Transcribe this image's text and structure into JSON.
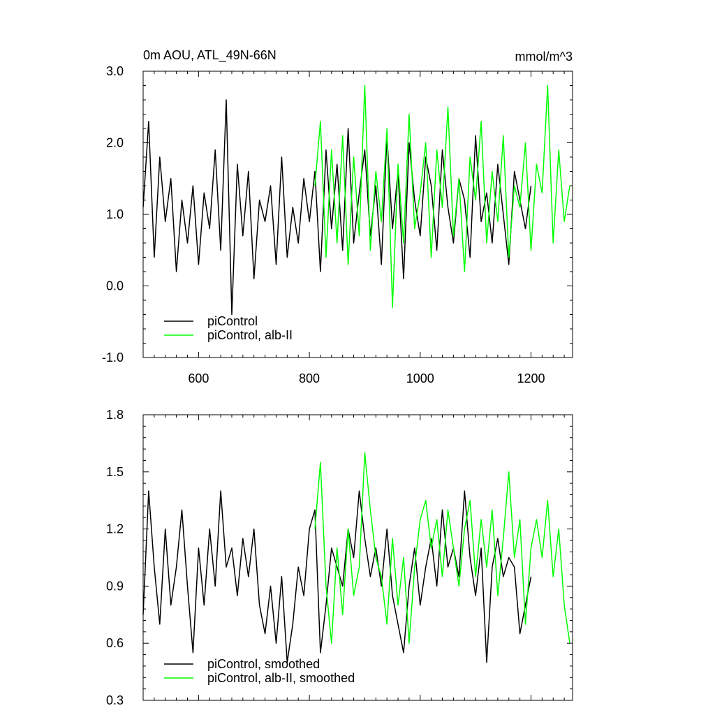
{
  "colors": {
    "control": "#000000",
    "alb": "#00ff00"
  },
  "chart_data": [
    {
      "type": "line",
      "title": "0m AOU, ATL_49N-66N",
      "units": "mmol/m^3",
      "xlim": [
        500,
        1275
      ],
      "ylim": [
        -1.0,
        3.0
      ],
      "xticks": [
        600,
        800,
        1000,
        1200
      ],
      "yticks": [
        -1.0,
        0.0,
        1.0,
        2.0,
        3.0
      ],
      "ytick_labels": [
        "-1.0",
        "0.0",
        "1.0",
        "2.0",
        "3.0"
      ],
      "xtick_labels": [
        "600",
        "800",
        "1000",
        "1200"
      ],
      "legend": {
        "placement": "bottom-left",
        "entries": [
          "piControl",
          "piControl, alb-II"
        ]
      },
      "series": [
        {
          "name": "piControl",
          "color": "#000000",
          "x": [
            500,
            510,
            520,
            530,
            540,
            550,
            560,
            570,
            580,
            590,
            600,
            610,
            620,
            630,
            640,
            650,
            660,
            670,
            680,
            690,
            700,
            710,
            720,
            730,
            740,
            750,
            760,
            770,
            780,
            790,
            800,
            810,
            820,
            830,
            840,
            850,
            860,
            870,
            880,
            890,
            900,
            910,
            920,
            930,
            940,
            950,
            960,
            970,
            980,
            990,
            1000,
            1010,
            1020,
            1030,
            1040,
            1050,
            1060,
            1070,
            1080,
            1090,
            1100,
            1110,
            1120,
            1130,
            1140,
            1150,
            1160,
            1170,
            1180,
            1190,
            1200
          ],
          "y": [
            1.1,
            2.3,
            0.4,
            1.8,
            0.9,
            1.5,
            0.2,
            1.2,
            0.6,
            1.4,
            0.3,
            1.3,
            0.8,
            1.9,
            0.5,
            2.6,
            -0.4,
            1.7,
            0.7,
            1.6,
            0.1,
            1.2,
            0.9,
            1.4,
            0.3,
            1.8,
            0.4,
            1.1,
            0.6,
            1.5,
            0.9,
            1.6,
            0.2,
            1.9,
            0.8,
            1.7,
            0.5,
            2.2,
            0.6,
            1.3,
            1.9,
            0.7,
            1.4,
            0.3,
            2.1,
            0.8,
            1.6,
            0.1,
            2.0,
            1.2,
            0.7,
            1.8,
            1.4,
            0.5,
            1.9,
            1.1,
            0.6,
            1.5,
            1.2,
            0.4,
            2.1,
            0.9,
            1.3,
            0.6,
            1.7,
            1.0,
            0.3,
            1.6,
            1.2,
            0.8,
            1.4
          ]
        },
        {
          "name": "piControl, alb-II",
          "color": "#00ff00",
          "x": [
            810,
            820,
            830,
            840,
            850,
            860,
            870,
            880,
            890,
            900,
            910,
            920,
            930,
            940,
            950,
            960,
            970,
            980,
            990,
            1000,
            1010,
            1020,
            1030,
            1040,
            1050,
            1060,
            1070,
            1080,
            1090,
            1100,
            1110,
            1120,
            1130,
            1140,
            1150,
            1160,
            1170,
            1180,
            1190,
            1200,
            1210,
            1220,
            1230,
            1240,
            1250,
            1260,
            1270
          ],
          "y": [
            1.4,
            2.3,
            0.4,
            1.9,
            0.6,
            2.1,
            0.3,
            1.8,
            0.7,
            2.8,
            0.5,
            1.6,
            0.9,
            2.2,
            -0.3,
            1.7,
            0.6,
            2.4,
            0.8,
            1.3,
            2.0,
            0.4,
            1.9,
            1.1,
            2.5,
            0.7,
            1.5,
            0.2,
            1.8,
            1.2,
            2.3,
            0.6,
            1.6,
            0.9,
            2.1,
            0.4,
            1.4,
            1.1,
            2.0,
            0.5,
            1.7,
            1.3,
            2.8,
            0.6,
            1.9,
            0.9,
            1.4
          ]
        }
      ]
    },
    {
      "type": "line",
      "xlim": [
        500,
        1275
      ],
      "ylim": [
        0.3,
        1.8
      ],
      "yticks": [
        0.3,
        0.6,
        0.9,
        1.2,
        1.5,
        1.8
      ],
      "ytick_labels": [
        "0.3",
        "0.6",
        "0.9",
        "1.2",
        "1.5",
        "1.8"
      ],
      "legend": {
        "placement": "bottom-left",
        "entries": [
          "piControl, smoothed",
          "piControl, alb-II, smoothed"
        ]
      },
      "series": [
        {
          "name": "piControl, smoothed",
          "color": "#000000",
          "x": [
            500,
            510,
            520,
            530,
            540,
            550,
            560,
            570,
            580,
            590,
            600,
            610,
            620,
            630,
            640,
            650,
            660,
            670,
            680,
            690,
            700,
            710,
            720,
            730,
            740,
            750,
            760,
            770,
            780,
            790,
            800,
            810,
            820,
            830,
            840,
            850,
            860,
            870,
            880,
            890,
            900,
            910,
            920,
            930,
            940,
            950,
            960,
            970,
            980,
            990,
            1000,
            1010,
            1020,
            1030,
            1040,
            1050,
            1060,
            1070,
            1080,
            1090,
            1100,
            1110,
            1120,
            1130,
            1140,
            1150,
            1160,
            1170,
            1180,
            1190,
            1200
          ],
          "y": [
            0.75,
            1.4,
            1.0,
            0.7,
            1.2,
            0.8,
            1.0,
            1.3,
            0.9,
            0.55,
            1.1,
            0.8,
            1.2,
            0.9,
            1.4,
            1.0,
            1.1,
            0.85,
            1.15,
            0.95,
            1.2,
            0.8,
            0.65,
            0.9,
            0.6,
            0.95,
            0.5,
            0.7,
            1.0,
            0.85,
            1.2,
            1.3,
            0.55,
            0.8,
            1.1,
            1.0,
            0.9,
            1.2,
            1.05,
            1.4,
            1.15,
            0.95,
            1.1,
            0.9,
            1.2,
            0.85,
            0.7,
            0.55,
            0.9,
            1.1,
            0.8,
            1.0,
            1.15,
            0.9,
            1.3,
            1.0,
            1.1,
            0.95,
            1.4,
            1.05,
            0.85,
            1.1,
            0.5,
            1.0,
            1.15,
            0.95,
            1.05,
            1.0,
            0.65,
            0.8,
            0.95
          ]
        },
        {
          "name": "piControl, alb-II, smoothed",
          "color": "#00ff00",
          "x": [
            810,
            820,
            830,
            840,
            850,
            860,
            870,
            880,
            890,
            900,
            910,
            920,
            930,
            940,
            950,
            960,
            970,
            980,
            990,
            1000,
            1010,
            1020,
            1030,
            1040,
            1050,
            1060,
            1070,
            1080,
            1090,
            1100,
            1110,
            1120,
            1130,
            1140,
            1150,
            1160,
            1170,
            1180,
            1190,
            1200,
            1210,
            1220,
            1230,
            1240,
            1250,
            1260,
            1270
          ],
          "y": [
            1.2,
            1.55,
            0.9,
            0.6,
            1.1,
            0.75,
            1.2,
            0.85,
            1.0,
            1.6,
            1.3,
            1.05,
            0.95,
            0.7,
            1.15,
            0.8,
            1.05,
            0.6,
            1.0,
            1.25,
            1.35,
            1.1,
            1.25,
            0.95,
            1.3,
            1.1,
            0.9,
            1.2,
            1.35,
            0.95,
            1.25,
            1.0,
            1.3,
            0.85,
            1.15,
            1.5,
            1.05,
            1.25,
            0.7,
            1.1,
            1.25,
            1.05,
            1.35,
            0.95,
            1.2,
            0.8,
            0.6
          ]
        }
      ]
    }
  ]
}
